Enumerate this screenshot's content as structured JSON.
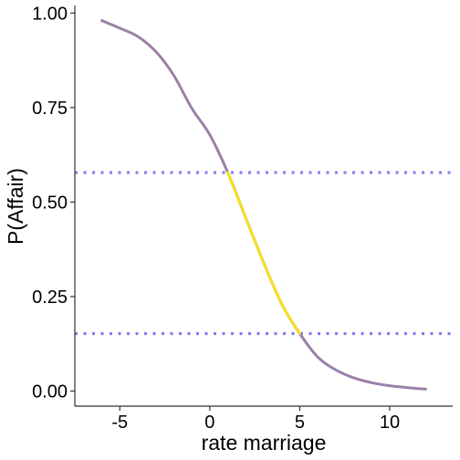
{
  "chart_data": {
    "type": "line",
    "title": "",
    "xlabel": "rate marriage",
    "ylabel": "P(Affair)",
    "xlim": [
      -7.5,
      13.5
    ],
    "ylim": [
      -0.04,
      1.02
    ],
    "x_ticks": [
      -5,
      0,
      5,
      10
    ],
    "x_tick_labels": [
      "-5",
      "0",
      "5",
      "10"
    ],
    "y_ticks": [
      0,
      0.25,
      0.5,
      0.75,
      1
    ],
    "y_tick_labels": [
      "0.00",
      "0.25",
      "0.50",
      "0.75",
      "1.00"
    ],
    "grid": false,
    "legend": "none",
    "series": [
      {
        "values_x": [
          -6,
          -5,
          -4,
          -3,
          -2,
          -1,
          0,
          1,
          2,
          3,
          4,
          5,
          6,
          7,
          8,
          9,
          10,
          11,
          12
        ],
        "values_y": [
          0.98,
          0.96,
          0.938,
          0.898,
          0.835,
          0.748,
          0.678,
          0.578,
          0.458,
          0.339,
          0.23,
          0.152,
          0.09,
          0.056,
          0.035,
          0.022,
          0.014,
          0.009,
          0.005
        ],
        "color": "#9b80a8"
      },
      {
        "values_x": [
          1,
          2,
          3,
          4,
          5
        ],
        "values_y": [
          0.578,
          0.458,
          0.339,
          0.23,
          0.152
        ],
        "color": "#f5e01e"
      }
    ],
    "reference_lines": [
      {
        "orientation": "horizontal",
        "y": 0.578,
        "style": "dotted",
        "color": "#8080ee"
      },
      {
        "orientation": "horizontal",
        "y": 0.152,
        "style": "dotted",
        "color": "#8080ee"
      }
    ]
  }
}
